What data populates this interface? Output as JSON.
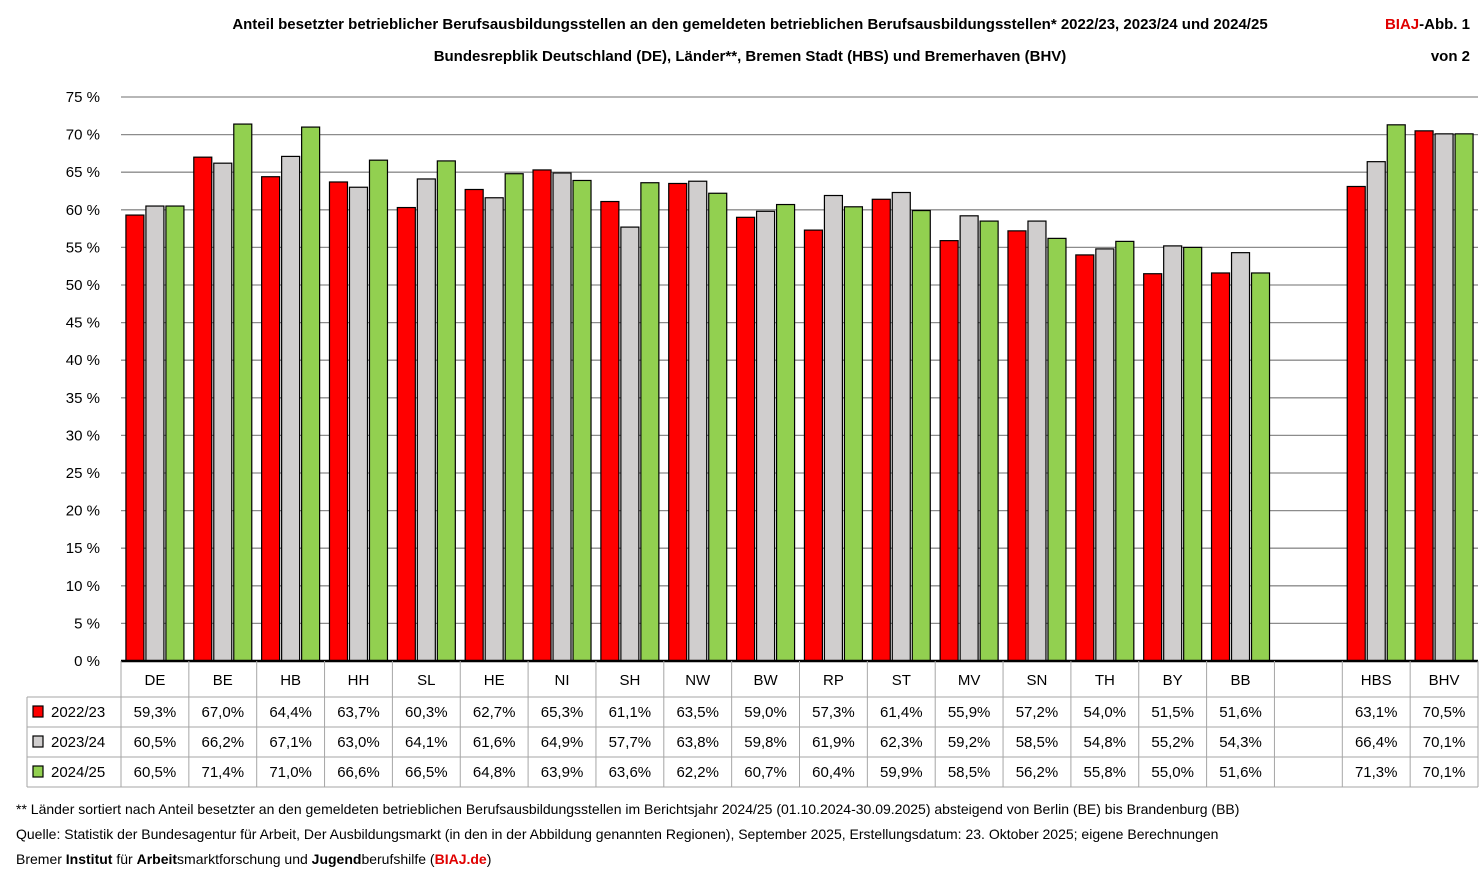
{
  "header": {
    "title": "Anteil besetzter betrieblicher Berufsausbildungsstellen an den gemeldeten betrieblichen Berufsausbildungsstellen* 2022/23, 2023/24 und 2024/25",
    "subtitle": "Bundesrepblik Deutschland (DE), Länder**, Bremen Stadt (HBS) und Bremerhaven (BHV)",
    "badge_brand": "BIAJ",
    "badge_rest": "-Abb. 1",
    "page": "von 2"
  },
  "chart_data": {
    "type": "bar",
    "title": "Anteil besetzter betrieblicher Berufsausbildungsstellen an den gemeldeten betrieblichen Berufsausbildungsstellen* 2022/23, 2023/24 und 2024/25",
    "categories": [
      "DE",
      "BE",
      "HB",
      "HH",
      "SL",
      "HE",
      "NI",
      "SH",
      "NW",
      "BW",
      "RP",
      "ST",
      "MV",
      "SN",
      "TH",
      "BY",
      "BB",
      "HBS",
      "BHV"
    ],
    "series": [
      {
        "name": "2022/23",
        "color": "#ff0000",
        "values": [
          59.3,
          67.0,
          64.4,
          63.7,
          60.3,
          62.7,
          65.3,
          61.1,
          63.5,
          59.0,
          57.3,
          61.4,
          55.9,
          57.2,
          54.0,
          51.5,
          51.6,
          63.1,
          70.5
        ],
        "labels": [
          "59,3%",
          "67,0%",
          "64,4%",
          "63,7%",
          "60,3%",
          "62,7%",
          "65,3%",
          "61,1%",
          "63,5%",
          "59,0%",
          "57,3%",
          "61,4%",
          "55,9%",
          "57,2%",
          "54,0%",
          "51,5%",
          "51,6%",
          "63,1%",
          "70,5%"
        ]
      },
      {
        "name": "2023/24",
        "color": "#d0cece",
        "values": [
          60.5,
          66.2,
          67.1,
          63.0,
          64.1,
          61.6,
          64.9,
          57.7,
          63.8,
          59.8,
          61.9,
          62.3,
          59.2,
          58.5,
          54.8,
          55.2,
          54.3,
          66.4,
          70.1
        ],
        "labels": [
          "60,5%",
          "66,2%",
          "67,1%",
          "63,0%",
          "64,1%",
          "61,6%",
          "64,9%",
          "57,7%",
          "63,8%",
          "59,8%",
          "61,9%",
          "62,3%",
          "59,2%",
          "58,5%",
          "54,8%",
          "55,2%",
          "54,3%",
          "66,4%",
          "70,1%"
        ]
      },
      {
        "name": "2024/25",
        "color": "#92d050",
        "values": [
          60.5,
          71.4,
          71.0,
          66.6,
          66.5,
          64.8,
          63.9,
          63.6,
          62.2,
          60.7,
          60.4,
          59.9,
          58.5,
          56.2,
          55.8,
          55.0,
          51.6,
          71.3,
          70.1
        ],
        "labels": [
          "60,5%",
          "71,4%",
          "71,0%",
          "66,6%",
          "66,5%",
          "64,8%",
          "63,9%",
          "63,6%",
          "62,2%",
          "60,7%",
          "60,4%",
          "59,9%",
          "58,5%",
          "56,2%",
          "55,8%",
          "55,0%",
          "51,6%",
          "71,3%",
          "70,1%"
        ]
      }
    ],
    "ylim": [
      0,
      75
    ],
    "yticks": [
      "0 %",
      "5 %",
      "10 %",
      "15 %",
      "20 %",
      "25 %",
      "30 %",
      "35 %",
      "40 %",
      "45 %",
      "50 %",
      "55 %",
      "60 %",
      "65 %",
      "70 %",
      "75 %"
    ],
    "grid": true,
    "legend": "data-table-below"
  },
  "footer": {
    "note": "** Länder sortiert nach Anteil besetzter an den gemeldeten betrieblichen Berufsausbildungsstellen im Berichtsjahr 2024/25 (01.10.2024-30.09.2025) absteigend von Berlin (BE) bis Brandenburg (BB)",
    "source": "Quelle: Statistik der Bundesagentur für Arbeit, Der Ausbildungsmarkt (in den in der Abbildung genannten Regionen), September 2025, Erstellungsdatum: 23. Oktober 2025; eigene Berechnungen",
    "org": [
      {
        "t": "Bremer ",
        "b": false
      },
      {
        "t": "Institut",
        "b": true
      },
      {
        "t": " für ",
        "b": false
      },
      {
        "t": "Arbeit",
        "b": true
      },
      {
        "t": "smarktforschung und ",
        "b": false
      },
      {
        "t": "Jugend",
        "b": true
      },
      {
        "t": "berufshilfe (",
        "b": false
      },
      {
        "t": "BIAJ.de",
        "b": true,
        "red": true
      },
      {
        "t": ")",
        "b": false
      }
    ]
  }
}
